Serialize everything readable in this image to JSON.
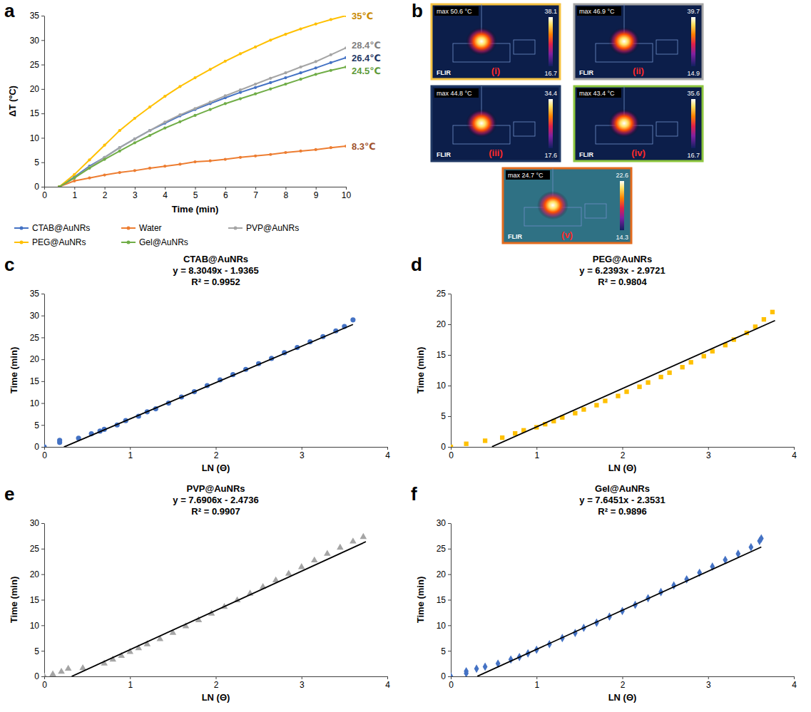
{
  "chart_data": [
    {
      "panel": "a",
      "type": "line",
      "x_label": "Time (min)",
      "y_label": "ΔT (ºC)",
      "x": [
        0.5,
        1,
        1.5,
        2,
        2.5,
        3,
        3.5,
        4,
        4.5,
        5,
        5.5,
        6,
        6.5,
        7,
        7.5,
        8,
        8.5,
        9,
        9.5,
        10
      ],
      "xlim": [
        0,
        10
      ],
      "xticks": [
        0,
        1,
        2,
        3,
        4,
        5,
        6,
        7,
        8,
        9,
        10
      ],
      "ylim": [
        0,
        35
      ],
      "yticks": [
        0,
        5,
        10,
        15,
        20,
        25,
        30,
        35
      ],
      "legend": "bottom",
      "series": [
        {
          "name": "CTAB@AuNRs",
          "color": "#4472c4",
          "marker": "circle",
          "values": [
            0,
            2,
            4.2,
            6,
            8,
            9.8,
            11.5,
            13,
            14.5,
            15.8,
            17,
            18.2,
            19.3,
            20.3,
            21.3,
            22.3,
            23.3,
            24.3,
            25.4,
            26.4
          ]
        },
        {
          "name": "Water",
          "color": "#ed7d31",
          "marker": "circle",
          "values": [
            0,
            1.2,
            1.8,
            2.4,
            2.9,
            3.3,
            3.8,
            4.2,
            4.6,
            5.1,
            5.3,
            5.6,
            6,
            6.3,
            6.6,
            7,
            7.3,
            7.6,
            8,
            8.3
          ]
        },
        {
          "name": "PVP@AuNRs",
          "color": "#a5a5a5",
          "marker": "circle",
          "values": [
            0,
            1.8,
            4,
            6,
            8,
            9.8,
            11.5,
            13.2,
            14.7,
            16,
            17.3,
            18.6,
            19.8,
            21,
            22.2,
            23.3,
            24.5,
            25.6,
            27,
            28.4
          ]
        },
        {
          "name": "PEG@AuNRs",
          "color": "#ffc000",
          "marker": "circle",
          "values": [
            0,
            2.5,
            5.5,
            8.5,
            11.5,
            14,
            16.3,
            18.5,
            20.5,
            22.3,
            24,
            25.7,
            27.2,
            28.6,
            30,
            31.2,
            32.3,
            33.3,
            34.2,
            35
          ]
        },
        {
          "name": "Gel@AuNRs",
          "color": "#70ad47",
          "marker": "circle",
          "values": [
            0,
            1.8,
            3.8,
            5.6,
            7.3,
            9,
            10.5,
            12,
            13.3,
            14.6,
            15.8,
            17,
            18,
            19,
            20,
            21,
            22,
            23,
            23.8,
            24.5
          ]
        }
      ],
      "annotations": [
        {
          "text": "35℃",
          "x": 10,
          "y": 35,
          "color": "#c98a00"
        },
        {
          "text": "28.4℃",
          "x": 10,
          "y": 28.9,
          "color": "#7f7f7f"
        },
        {
          "text": "26.4℃",
          "x": 10,
          "y": 26.3,
          "color": "#1f3864"
        },
        {
          "text": "24.5℃",
          "x": 10,
          "y": 23.7,
          "color": "#5e9a3a"
        },
        {
          "text": "8.3℃",
          "x": 10,
          "y": 8.3,
          "color": "#a0522d"
        }
      ]
    },
    {
      "panel": "c",
      "type": "scatter",
      "title": "CTAB@AuNRs",
      "equation": "y = 8.3049x - 1.9365",
      "r_squared": "R² = 0.9952",
      "x_label": "LN (Θ)",
      "y_label": "Time (min)",
      "xlim": [
        0,
        4
      ],
      "xticks": [
        0,
        1,
        2,
        3,
        4
      ],
      "ylim": [
        0,
        35
      ],
      "yticks": [
        0,
        5,
        10,
        15,
        20,
        25,
        30,
        35
      ],
      "series": [
        {
          "color": "#4472c4",
          "marker": "circle",
          "x": [
            0,
            0.18,
            0.18,
            0.4,
            0.55,
            0.65,
            0.7,
            0.85,
            0.95,
            1.1,
            1.2,
            1.3,
            1.45,
            1.6,
            1.75,
            1.9,
            2.05,
            2.2,
            2.35,
            2.5,
            2.65,
            2.8,
            2.95,
            3.1,
            3.25,
            3.4,
            3.5,
            3.6
          ],
          "values": [
            0,
            1.0,
            1.5,
            2,
            3,
            3.6,
            4,
            5,
            6,
            7,
            8,
            8.7,
            10,
            11.4,
            12.6,
            14,
            15.3,
            16.5,
            17.7,
            19,
            20.2,
            21.5,
            22.7,
            24,
            25.2,
            26.5,
            27.5,
            29
          ]
        }
      ],
      "fit": {
        "slope": 8.3049,
        "intercept": -1.9365,
        "x": [
          0.23,
          3.6
        ],
        "color": "#000000"
      }
    },
    {
      "panel": "d",
      "type": "scatter",
      "title": "PEG@AuNRs",
      "equation": "y = 6.2393x - 2.9721",
      "r_squared": "R² = 0.9804",
      "x_label": "LN (Θ)",
      "y_label": "Time (min)",
      "xlim": [
        0,
        4
      ],
      "xticks": [
        0,
        1,
        2,
        3,
        4
      ],
      "ylim": [
        0,
        25
      ],
      "yticks": [
        0,
        5,
        10,
        15,
        20,
        25
      ],
      "series": [
        {
          "color": "#ffc000",
          "marker": "square",
          "x": [
            0,
            0.18,
            0.4,
            0.6,
            0.75,
            0.85,
            1.0,
            1.1,
            1.2,
            1.3,
            1.45,
            1.55,
            1.7,
            1.8,
            1.95,
            2.05,
            2.2,
            2.3,
            2.45,
            2.55,
            2.7,
            2.8,
            2.95,
            3.05,
            3.2,
            3.3,
            3.45,
            3.55,
            3.65,
            3.75
          ],
          "values": [
            0,
            0.5,
            1.0,
            1.5,
            2.2,
            2.7,
            3.2,
            3.7,
            4.2,
            4.8,
            5.5,
            6.1,
            6.8,
            7.5,
            8.3,
            9.0,
            9.8,
            10.5,
            11.4,
            12.1,
            13.0,
            13.8,
            14.8,
            15.6,
            16.6,
            17.5,
            18.6,
            19.6,
            20.8,
            22
          ]
        }
      ],
      "fit": {
        "slope": 6.2393,
        "intercept": -2.9721,
        "x": [
          0.48,
          3.78
        ],
        "color": "#000000"
      }
    },
    {
      "panel": "e",
      "type": "scatter",
      "title": "PVP@AuNRs",
      "equation": "y = 7.6906x - 2.4736",
      "r_squared": "R² = 0.9907",
      "x_label": "LN (Θ)",
      "y_label": "Time (min)",
      "xlim": [
        0,
        4
      ],
      "xticks": [
        0,
        1,
        2,
        3,
        4
      ],
      "ylim": [
        0,
        30
      ],
      "yticks": [
        0,
        5,
        10,
        15,
        20,
        25,
        30
      ],
      "series": [
        {
          "color": "#a5a5a5",
          "marker": "triangle",
          "x": [
            0,
            0.1,
            0.2,
            0.28,
            0.45,
            0.7,
            0.8,
            0.9,
            1.0,
            1.1,
            1.2,
            1.35,
            1.5,
            1.65,
            1.8,
            1.95,
            2.1,
            2.25,
            2.4,
            2.55,
            2.7,
            2.85,
            3.0,
            3.15,
            3.3,
            3.45,
            3.6,
            3.72
          ],
          "values": [
            0,
            0.4,
            0.9,
            1.5,
            1.6,
            2.5,
            3.3,
            4,
            4.8,
            5.5,
            6.3,
            7.3,
            8.5,
            9.8,
            11,
            12.3,
            13.6,
            14.9,
            16.2,
            17.5,
            18.8,
            20.1,
            21.4,
            22.7,
            24,
            25.2,
            26.4,
            27.3
          ]
        }
      ],
      "fit": {
        "slope": 7.6906,
        "intercept": -2.4736,
        "x": [
          0.32,
          3.75
        ],
        "color": "#000000"
      }
    },
    {
      "panel": "f",
      "type": "scatter",
      "title": "Gel@AuNRs",
      "equation": "y = 7.6451x - 2.3531",
      "r_squared": "R² = 0.9896",
      "x_label": "LN (Θ)",
      "y_label": "Time (min)",
      "xlim": [
        0,
        4
      ],
      "xticks": [
        0,
        1,
        2,
        3,
        4
      ],
      "ylim": [
        0,
        30
      ],
      "yticks": [
        0,
        5,
        10,
        15,
        20,
        25,
        30
      ],
      "series": [
        {
          "color": "#4472c4",
          "marker": "diamond",
          "x": [
            0,
            0.18,
            0.18,
            0.3,
            0.4,
            0.55,
            0.7,
            0.8,
            0.9,
            1.0,
            1.15,
            1.3,
            1.45,
            1.55,
            1.7,
            1.85,
            2.0,
            2.15,
            2.3,
            2.45,
            2.6,
            2.75,
            2.9,
            3.05,
            3.2,
            3.35,
            3.5,
            3.6,
            3.62
          ],
          "values": [
            0,
            0.6,
            1.0,
            1.5,
            1.9,
            2.5,
            3.3,
            3.8,
            4.5,
            5.2,
            6.3,
            7.5,
            8.5,
            9.5,
            10.5,
            11.7,
            12.8,
            14,
            15.3,
            16.5,
            17.8,
            19,
            20.3,
            21.5,
            22.8,
            24,
            25.3,
            26.5,
            27
          ]
        }
      ],
      "fit": {
        "slope": 7.6451,
        "intercept": -2.3531,
        "x": [
          0.31,
          3.62
        ],
        "color": "#000000"
      }
    }
  ],
  "thermal_images": {
    "panel": "b",
    "images": [
      {
        "label": "(i)",
        "max": "max 50.6 °C",
        "scale_max": "38.1",
        "scale_min": "16.7",
        "brand": "FLIR",
        "color": "#f5c242"
      },
      {
        "label": "(ii)",
        "max": "max 46.9 °C",
        "scale_max": "39.7",
        "scale_min": "14.9",
        "brand": "FLIR",
        "color": "#a5a5a5"
      },
      {
        "label": "(iii)",
        "max": "max 44.8 °C",
        "scale_max": "34.4",
        "scale_min": "17.6",
        "brand": "FLIR",
        "color": "#1f3864"
      },
      {
        "label": "(iv)",
        "max": "max 43.4 °C",
        "scale_max": "35.6",
        "scale_min": "16.7",
        "brand": "FLIR",
        "color": "#8dc63f"
      },
      {
        "label": "(v)",
        "max": "max 24.7 °C",
        "scale_max": "22.6",
        "scale_min": "14.3",
        "brand": "FLIR",
        "color": "#e46c1f"
      }
    ]
  }
}
